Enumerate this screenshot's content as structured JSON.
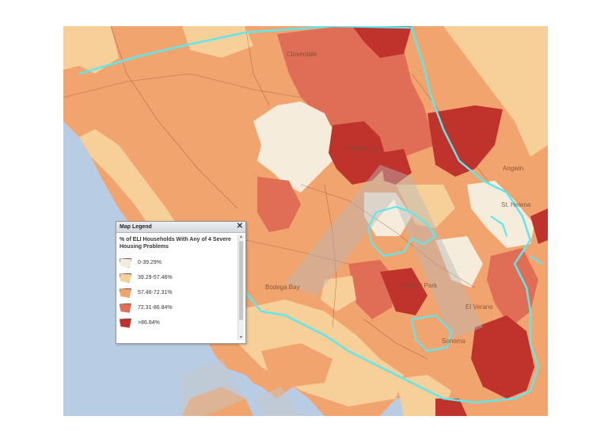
{
  "legend": {
    "header": "Map Legend",
    "close": "✕",
    "title": "% of ELI Households With Any of 4 Severe Housing Problems",
    "items": [
      {
        "label": "0-39.29%",
        "color": "#f6ecdb"
      },
      {
        "label": "39.29-57.46%",
        "color": "#f7cf99"
      },
      {
        "label": "57.46-72.31%",
        "color": "#f2a46e"
      },
      {
        "label": "72.31-86.84%",
        "color": "#e06d55"
      },
      {
        "label": ">86.84%",
        "color": "#c0332d"
      }
    ]
  },
  "places": [
    "Cloverdale",
    "Healdsburg",
    "Angwin",
    "St. Helena",
    "Bodega Bay",
    "Rohnert Park",
    "El Verano",
    "Sonoma"
  ],
  "watermark": "DRAFT",
  "colors": {
    "water": "#b8cde3",
    "boundary": "#5ee8ee",
    "watermark": "#b9b9b9"
  }
}
